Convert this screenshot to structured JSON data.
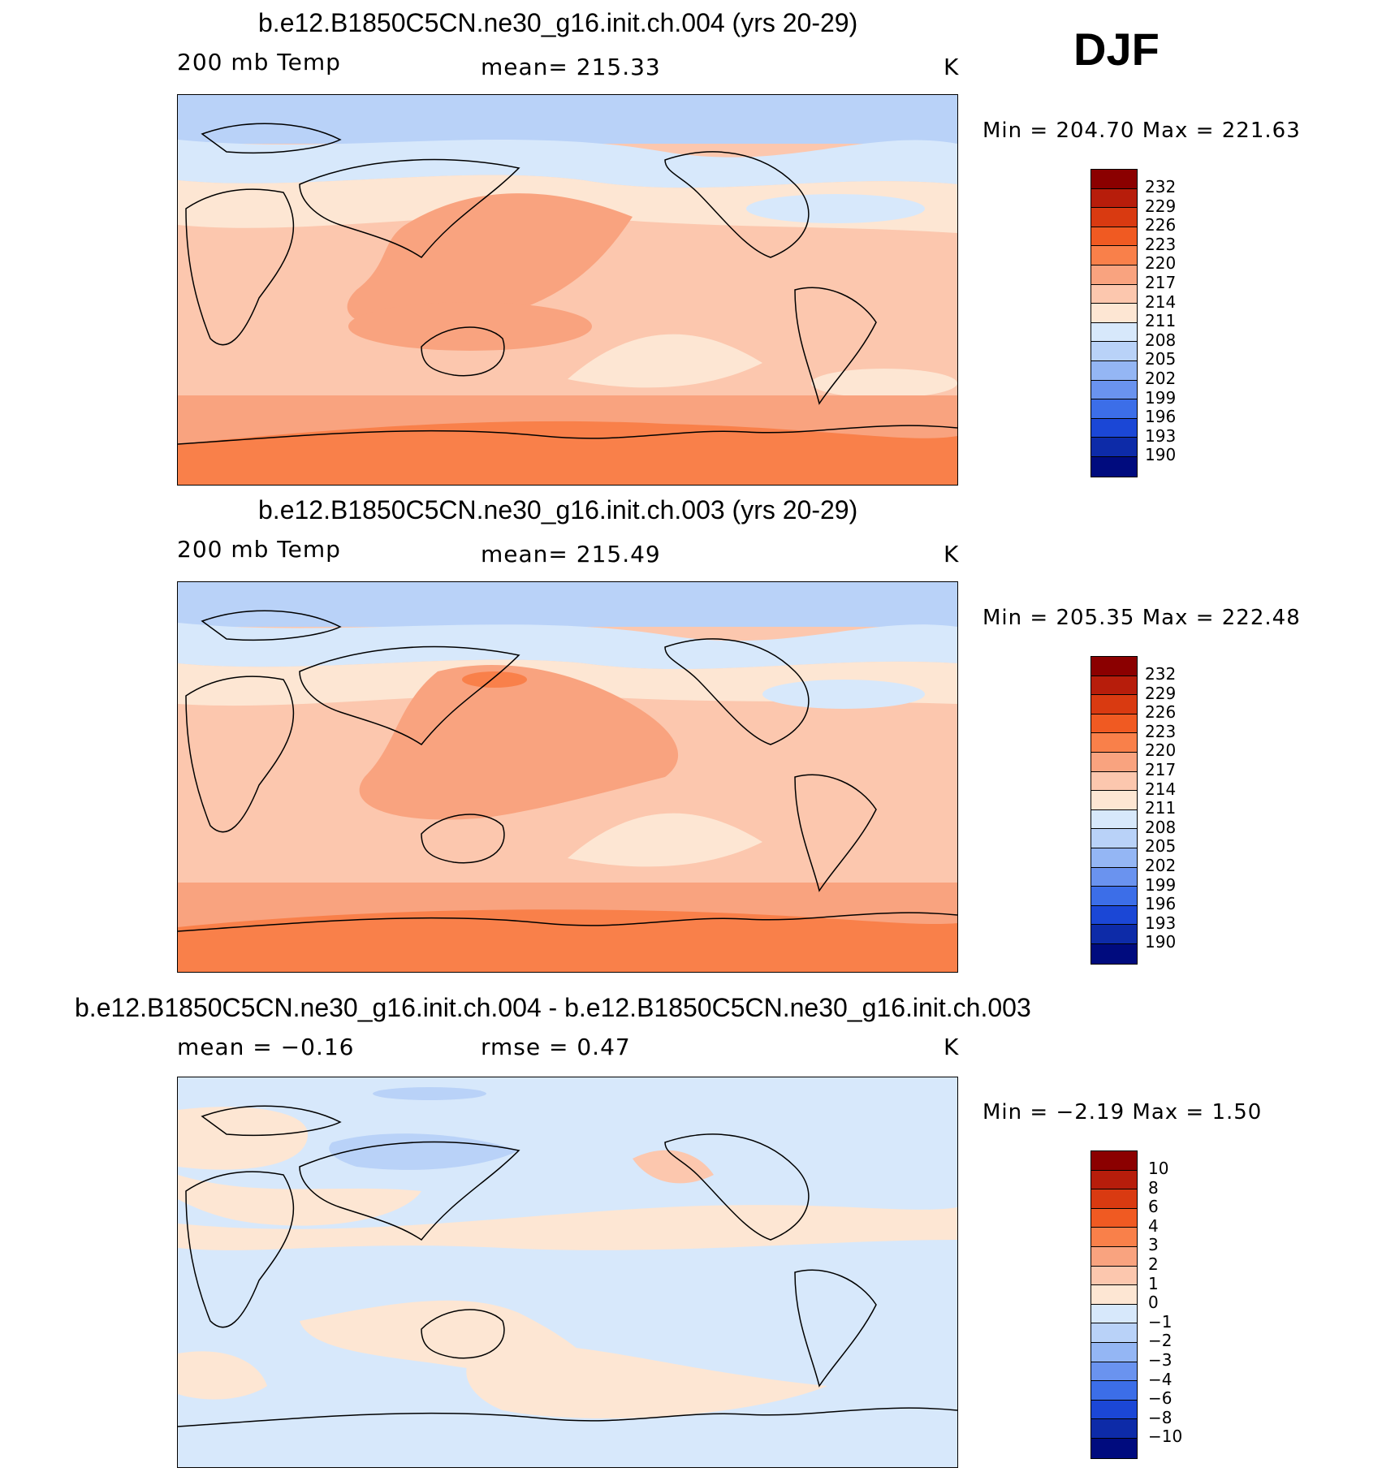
{
  "season": "DJF",
  "panels": [
    {
      "title": "b.e12.B1850C5CN.ne30_g16.init.ch.004 (yrs 20-29)",
      "left_label": "200 mb Temp",
      "center_label": "mean=  215.33",
      "units": "K",
      "minmax": "Min  =  204.70  Max  =  221.63",
      "colorbar_levels": [
        "232",
        "229",
        "226",
        "223",
        "220",
        "217",
        "214",
        "211",
        "208",
        "205",
        "202",
        "199",
        "196",
        "193",
        "190"
      ]
    },
    {
      "title": "b.e12.B1850C5CN.ne30_g16.init.ch.003 (yrs 20-29)",
      "left_label": "200 mb Temp",
      "center_label": "mean=  215.49",
      "units": "K",
      "minmax": "Min  =  205.35  Max  =  222.48",
      "colorbar_levels": [
        "232",
        "229",
        "226",
        "223",
        "220",
        "217",
        "214",
        "211",
        "208",
        "205",
        "202",
        "199",
        "196",
        "193",
        "190"
      ]
    },
    {
      "title": "b.e12.B1850C5CN.ne30_g16.init.ch.004 - b.e12.B1850C5CN.ne30_g16.init.ch.003",
      "left_label": "mean  =    −0.16",
      "center_label": "rmse  =     0.47",
      "units": "K",
      "minmax": "Min  =    −2.19  Max  =     1.50",
      "colorbar_levels": [
        "10",
        "8",
        "6",
        "4",
        "3",
        "2",
        "1",
        "0",
        "−1",
        "−2",
        "−3",
        "−4",
        "−6",
        "−8",
        "−10"
      ]
    }
  ],
  "colors": {
    "colorbar": [
      "#8b0000",
      "#b71d0b",
      "#d93a11",
      "#f05a22",
      "#f9804a",
      "#f9a37f",
      "#fcc7ae",
      "#fde6d3",
      "#d7e8fb",
      "#b9d2f8",
      "#94b6f4",
      "#6a93ef",
      "#3c6ee8",
      "#1b47d6",
      "#0d2ba8",
      "#000b7e"
    ],
    "map_fill_1": [
      "#f9a37f",
      "#fcc7ae",
      "#fde6d3",
      "#d7e8fb",
      "#b9d2f8"
    ],
    "diff_fill": [
      "#d7e8fb",
      "#fde6d3",
      "#b9d2f8",
      "#fcc7ae"
    ]
  }
}
